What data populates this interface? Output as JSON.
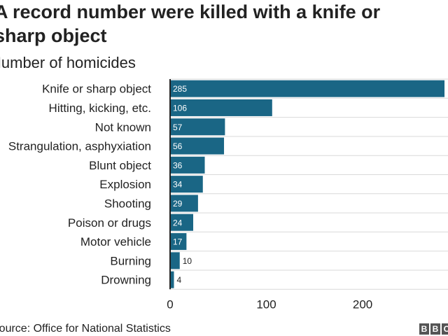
{
  "title": "A record number were killed with a knife or\nsharp object",
  "subtitle": "Number of homicides",
  "source": "Source: Office for National Statistics",
  "logo": [
    "B",
    "B",
    "C"
  ],
  "colors": {
    "bar": "#1a6685",
    "grid": "#d9d9d9",
    "axis": "#222222",
    "text": "#222222"
  },
  "chart_data": {
    "type": "bar",
    "orientation": "horizontal",
    "categories": [
      "Knife or sharp object",
      "Hitting, kicking, etc.",
      "Not known",
      "Strangulation, asphyxiation",
      "Blunt object",
      "Explosion",
      "Shooting",
      "Poison or drugs",
      "Motor vehicle",
      "Burning",
      "Drowning"
    ],
    "values": [
      285,
      106,
      57,
      56,
      36,
      34,
      29,
      24,
      17,
      10,
      4
    ],
    "xlim": [
      0,
      285
    ],
    "xticks": [
      0,
      100,
      200
    ],
    "grid": true
  }
}
